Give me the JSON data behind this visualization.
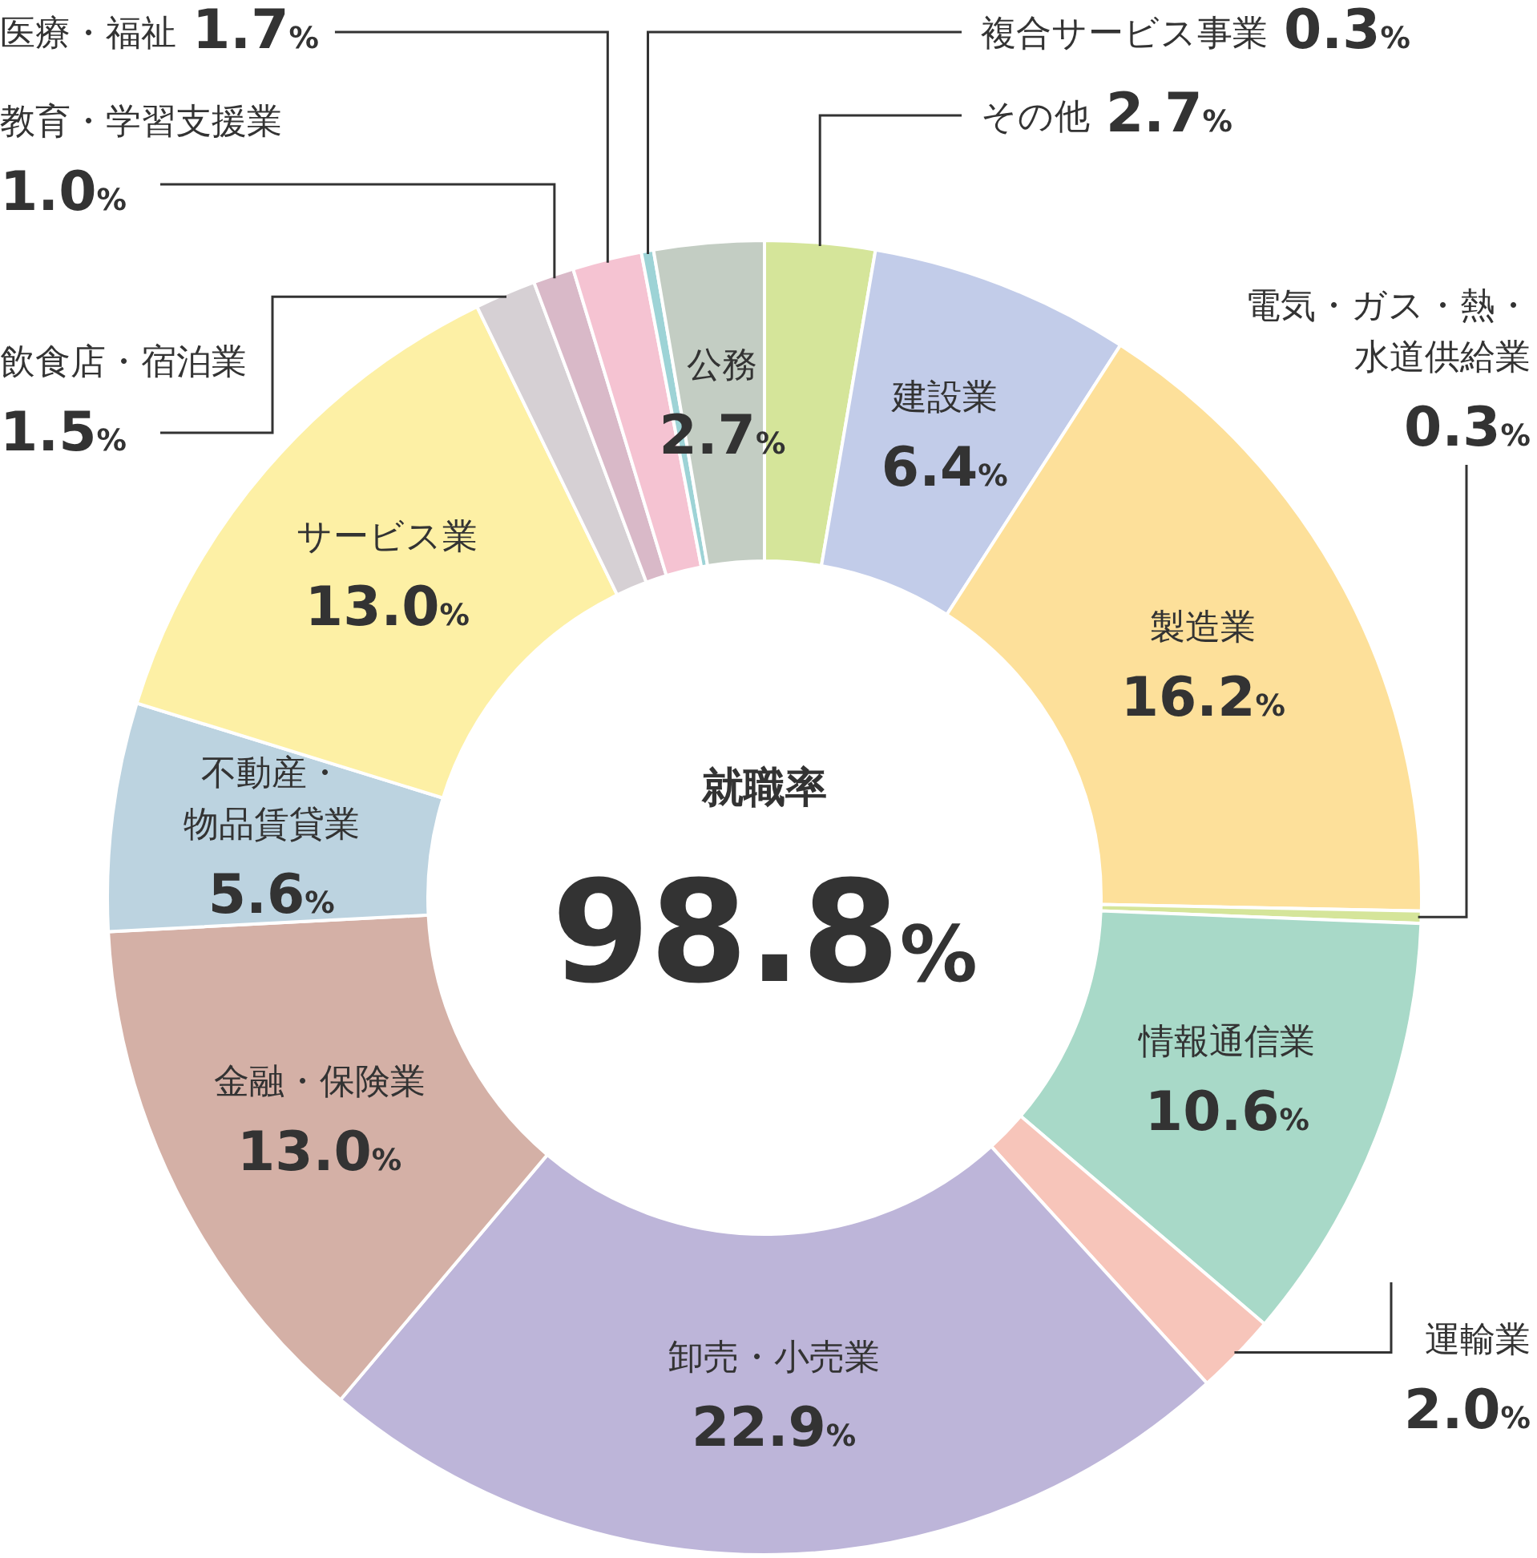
{
  "chart_data": {
    "type": "donut",
    "categories": [
      "その他",
      "建設業",
      "製造業",
      "電気・ガス・熱・水道供給業",
      "情報通信業",
      "運輸業",
      "卸売・小売業",
      "金融・保険業",
      "不動産・物品賃貸業",
      "サービス業",
      "飲食店・宿泊業",
      "教育・学習支援業",
      "医療・福祉",
      "複合サービス事業",
      "公務"
    ],
    "values": [
      2.7,
      6.4,
      16.2,
      0.3,
      10.6,
      2.0,
      22.9,
      13.0,
      5.6,
      13.0,
      1.5,
      1.0,
      1.7,
      0.3,
      2.7
    ],
    "colors": [
      "#d5e59a",
      "#c2cce9",
      "#fde09a",
      "#d5e59a",
      "#a8d9c8",
      "#f7c5ba",
      "#bdb5d9",
      "#d4b0a6",
      "#bcd3e0",
      "#fdf0a5",
      "#d6d0d4",
      "#d9b9c8",
      "#f5c3d2",
      "#9dd3d6",
      "#c3cdc3"
    ],
    "value_labels": [
      "2.7%",
      "6.4%",
      "16.2%",
      "0.3%",
      "10.6%",
      "2.0%",
      "22.9%",
      "13.0%",
      "5.6%",
      "13.0%",
      "1.5%",
      "1.0%",
      "1.7%",
      "0.3%",
      "2.7%"
    ],
    "annotations": [
      "就職率",
      "98.8%"
    ]
  }
}
